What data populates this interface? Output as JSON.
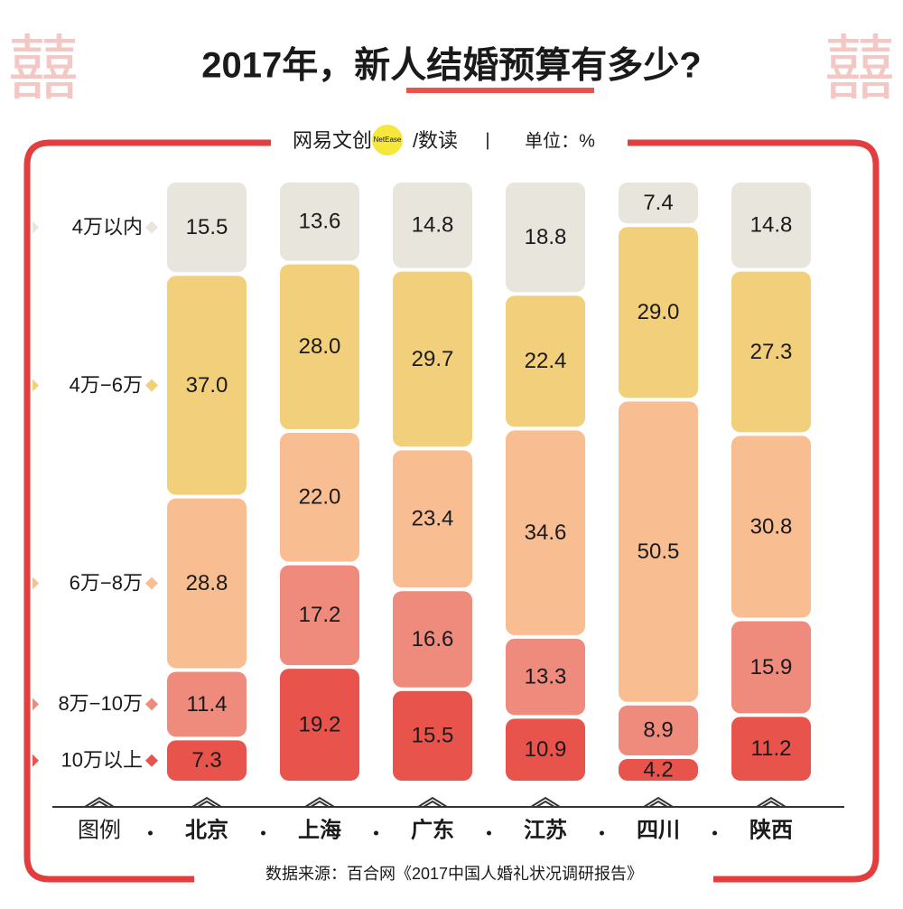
{
  "chart_data": {
    "type": "stacked-bar",
    "title": "2017年，新人结婚预算有多少?",
    "ornament": "囍",
    "brand": "网易文创",
    "brand_badge": "NetEase",
    "brand_suffix": "/数读",
    "separator": "|",
    "unit": "单位：%",
    "legend_label": "图例",
    "source": "数据来源：百合网《2017中国人婚礼状况调研报告》",
    "categories": [
      "北京",
      "上海",
      "广东",
      "江苏",
      "四川",
      "陕西"
    ],
    "series": [
      {
        "name": "4万以内",
        "color": "#e8e5dc",
        "values": [
          15.5,
          13.6,
          14.8,
          18.8,
          7.4,
          14.8
        ],
        "value_labels": [
          "15.5",
          "13.6",
          "14.8",
          "18.8",
          "7.4",
          "14.8"
        ]
      },
      {
        "name": "4万−6万",
        "color": "#f2cf7a",
        "values": [
          37.0,
          28.0,
          29.7,
          22.4,
          29.0,
          27.3
        ],
        "value_labels": [
          "37.0",
          "28.0",
          "29.7",
          "22.4",
          "29.0",
          "27.3"
        ]
      },
      {
        "name": "6万−8万",
        "color": "#f9bd92",
        "values": [
          28.8,
          22.0,
          23.4,
          34.6,
          50.5,
          30.8
        ],
        "value_labels": [
          "28.8",
          "22.0",
          "23.4",
          "34.6",
          "50.5",
          "30.8"
        ]
      },
      {
        "name": "8万−10万",
        "color": "#ef8b7c",
        "values": [
          11.4,
          17.2,
          16.6,
          13.3,
          8.9,
          15.9
        ],
        "value_labels": [
          "11.4",
          "17.2",
          "16.6",
          "13.3",
          "8.9",
          "15.9"
        ]
      },
      {
        "name": "10万以上",
        "color": "#e8534b",
        "values": [
          7.3,
          19.2,
          15.5,
          10.9,
          4.2,
          11.2
        ],
        "value_labels": [
          "7.3",
          "19.2",
          "15.5",
          "10.9",
          "4.2",
          "11.2"
        ]
      }
    ]
  }
}
